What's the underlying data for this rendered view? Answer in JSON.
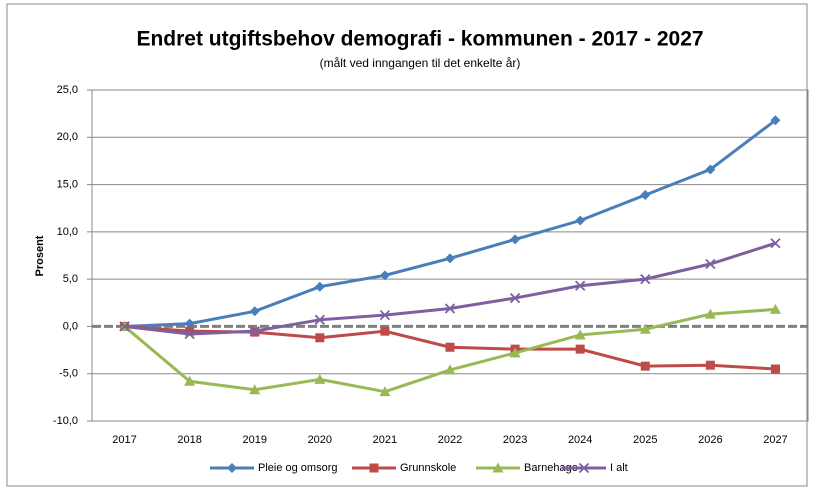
{
  "chart_data": {
    "type": "line",
    "title": "Endret utgiftsbehov demografi - kommunen - 2017 - 2027",
    "subtitle": "(målt ved inngangen til det enkelte år)",
    "y_label": "Prosent",
    "categories": [
      "2017",
      "2018",
      "2019",
      "2020",
      "2021",
      "2022",
      "2023",
      "2024",
      "2025",
      "2026",
      "2027"
    ],
    "series": [
      {
        "name": "Pleie og omsorg",
        "color": "#4a7ebb",
        "marker": "diamond",
        "values": [
          0,
          0.3,
          1.6,
          4.2,
          5.4,
          7.2,
          9.2,
          11.2,
          13.9,
          16.6,
          21.8
        ]
      },
      {
        "name": "Grunnskole",
        "color": "#be4b48",
        "marker": "square",
        "values": [
          0,
          -0.5,
          -0.6,
          -1.2,
          -0.5,
          -2.2,
          -2.4,
          -2.4,
          -4.2,
          -4.1,
          -4.5
        ]
      },
      {
        "name": "Barnehage",
        "color": "#98b954",
        "marker": "triangle",
        "values": [
          0,
          -5.8,
          -6.7,
          -5.6,
          -6.9,
          -4.6,
          -2.8,
          -0.9,
          -0.3,
          1.3,
          1.8
        ]
      },
      {
        "name": "I alt",
        "color": "#7d60a0",
        "marker": "x",
        "values": [
          0,
          -0.8,
          -0.5,
          0.7,
          1.2,
          1.9,
          3.0,
          4.3,
          5.0,
          6.6,
          8.8
        ]
      }
    ],
    "ylim": [
      -10,
      25
    ],
    "yticks": [
      {
        "value": -10,
        "label": "-10,0"
      },
      {
        "value": -5,
        "label": "-5,0"
      },
      {
        "value": 0,
        "label": "0,0"
      },
      {
        "value": 5,
        "label": "5,0"
      },
      {
        "value": 10,
        "label": "10,0"
      },
      {
        "value": 15,
        "label": "15,0"
      },
      {
        "value": 20,
        "label": "20,0"
      },
      {
        "value": 25,
        "label": "25,0"
      }
    ],
    "grid": true,
    "legend": "bottom"
  }
}
